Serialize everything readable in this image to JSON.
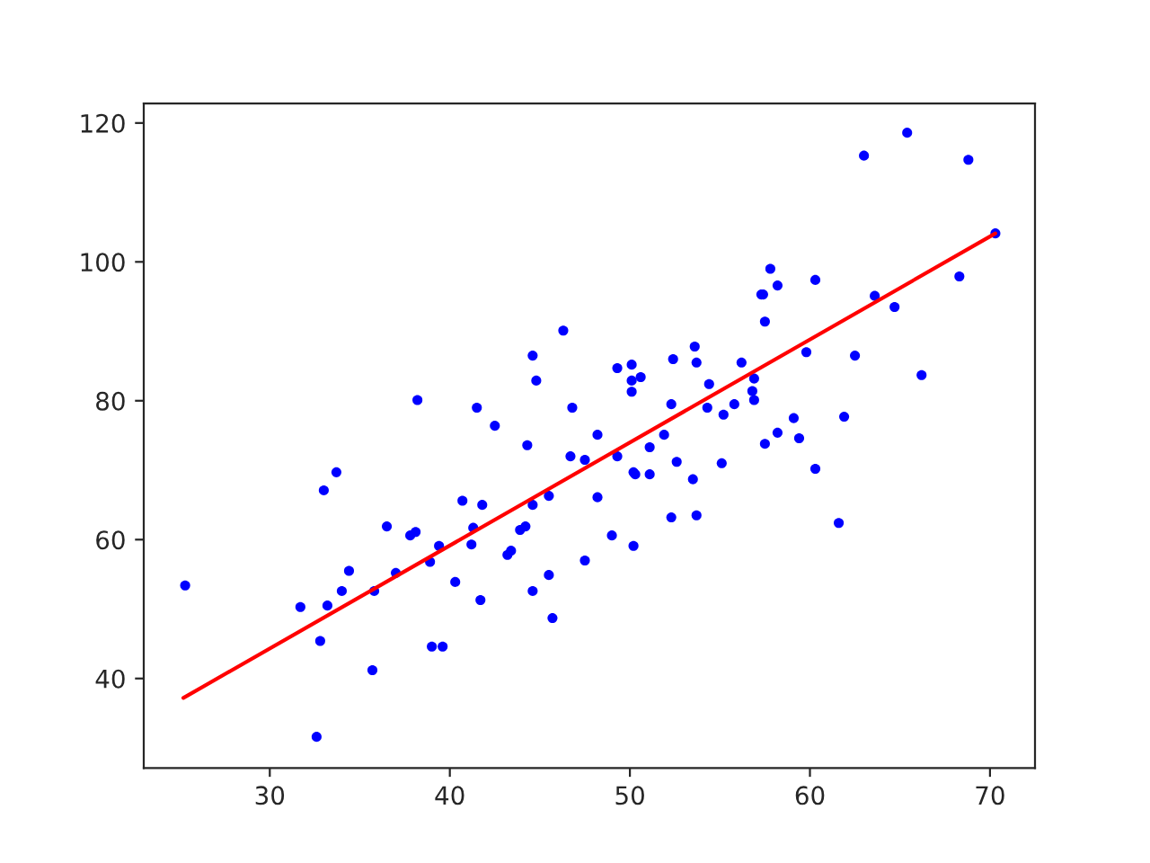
{
  "chart_data": {
    "type": "scatter",
    "xlim": [
      23.0,
      72.5
    ],
    "ylim": [
      27.1,
      122.8
    ],
    "xticks": [
      30,
      40,
      50,
      60,
      70
    ],
    "yticks": [
      40,
      60,
      80,
      100,
      120
    ],
    "grid": false,
    "legend": false,
    "series": [
      {
        "color": "#0000ff",
        "marker": "circle",
        "x": [
          25.3,
          38.2,
          33.7,
          33.0,
          36.5,
          37.8,
          38.1,
          39.4,
          38.9,
          34.4,
          37.0,
          34.0,
          35.8,
          31.7,
          33.2,
          32.8,
          39.0,
          39.6,
          35.7,
          32.6,
          41.5,
          42.5,
          44.6,
          44.8,
          46.3,
          46.8,
          48.2,
          44.3,
          46.7,
          47.5,
          49.3,
          50.1,
          50.1,
          50.6,
          50.1,
          49.3,
          52.3,
          52.4,
          53.6,
          53.7,
          54.4,
          54.3,
          55.2,
          55.8,
          56.2,
          51.9,
          51.1,
          52.6,
          50.2,
          50.3,
          51.1,
          55.1,
          53.5,
          48.2,
          45.5,
          44.6,
          40.7,
          41.8,
          41.3,
          41.2,
          43.9,
          44.2,
          43.2,
          43.4,
          52.3,
          53.7,
          49.0,
          50.2,
          47.5,
          45.5,
          44.6,
          40.3,
          41.7,
          45.7,
          65.4,
          63.0,
          68.8,
          70.3,
          57.8,
          58.2,
          57.3,
          57.4,
          60.3,
          57.5,
          63.6,
          64.7,
          68.3,
          59.8,
          62.5,
          66.2,
          56.9,
          56.8,
          56.9,
          59.1,
          61.9,
          58.2,
          59.4,
          57.5,
          60.3,
          61.6
        ],
        "values": [
          53.4,
          80.1,
          69.7,
          67.1,
          61.9,
          60.6,
          61.1,
          59.1,
          56.8,
          55.5,
          55.2,
          52.6,
          52.6,
          50.3,
          50.5,
          45.4,
          44.6,
          44.6,
          41.2,
          31.6,
          79.0,
          76.4,
          86.5,
          82.9,
          90.1,
          79.0,
          75.1,
          73.6,
          72.0,
          71.5,
          84.7,
          85.2,
          82.9,
          83.4,
          81.3,
          72.0,
          79.5,
          86.0,
          87.8,
          85.5,
          82.4,
          79.0,
          78.0,
          79.5,
          85.5,
          75.1,
          73.3,
          71.2,
          69.7,
          69.4,
          69.4,
          71.0,
          68.7,
          66.1,
          66.3,
          65.0,
          65.6,
          65.0,
          61.7,
          59.3,
          61.4,
          61.9,
          57.8,
          58.4,
          63.2,
          63.5,
          60.6,
          59.1,
          57.0,
          54.9,
          52.6,
          53.9,
          51.3,
          48.7,
          118.6,
          115.3,
          114.7,
          104.1,
          99.0,
          96.6,
          95.3,
          95.3,
          97.4,
          91.4,
          95.1,
          93.5,
          97.9,
          87.0,
          86.5,
          83.7,
          83.2,
          81.4,
          80.1,
          77.5,
          77.7,
          75.4,
          74.6,
          73.8,
          70.2,
          62.4
        ]
      },
      {
        "type": "line",
        "color": "#ff0000",
        "marker": "none",
        "line_style": "solid",
        "x": [
          25.2,
          70.3
        ],
        "values": [
          37.2,
          104.1
        ]
      }
    ]
  }
}
